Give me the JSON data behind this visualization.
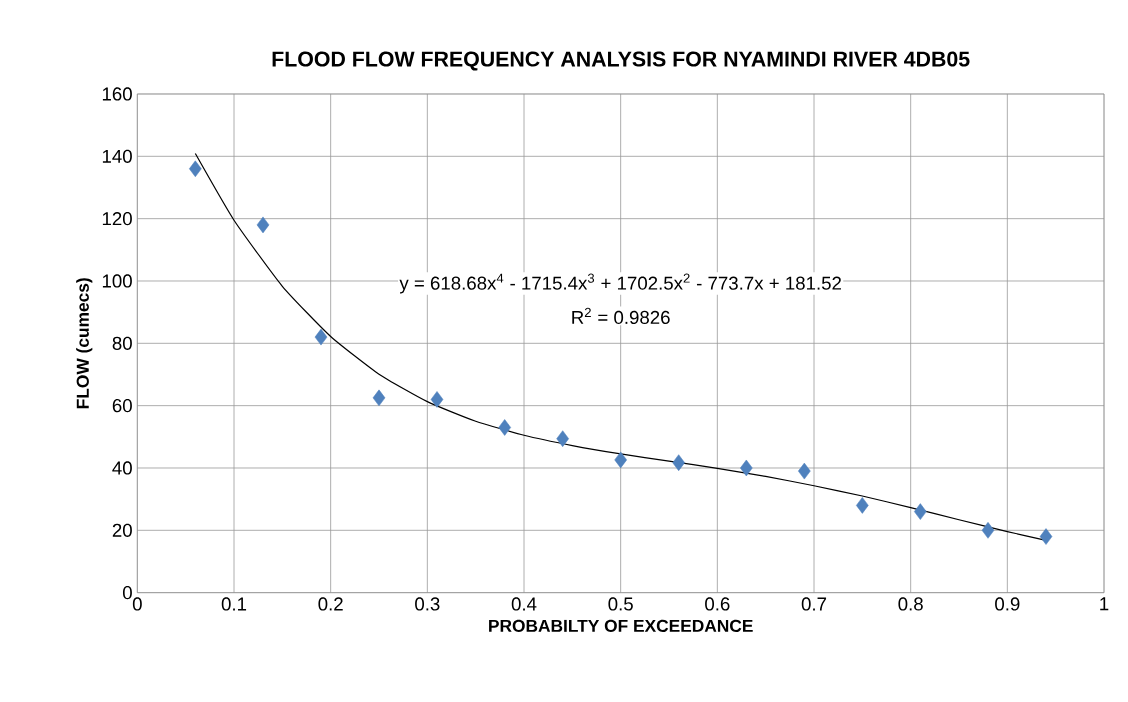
{
  "chart_data": {
    "type": "scatter",
    "title": "FLOOD FLOW FREQUENCY ANALYSIS FOR NYAMINDI RIVER 4DB05",
    "xlabel": "PROBABILTY OF EXCEEDANCE",
    "ylabel": "FLOW (cumecs)",
    "xlim": [
      0,
      1
    ],
    "xticks": [
      0,
      0.1,
      0.2,
      0.3,
      0.4,
      0.5,
      0.6,
      0.7,
      0.8,
      0.9,
      1
    ],
    "ylim": [
      0,
      160
    ],
    "yticks": [
      0,
      20,
      40,
      60,
      80,
      100,
      120,
      140,
      160
    ],
    "grid": true,
    "marker": "diamond",
    "series": [
      {
        "color": "#4f81bd",
        "x": [
          0.06,
          0.13,
          0.19,
          0.25,
          0.31,
          0.38,
          0.44,
          0.5,
          0.56,
          0.63,
          0.69,
          0.75,
          0.81,
          0.88,
          0.94
        ],
        "values": [
          136,
          118,
          82,
          62.5,
          62,
          53,
          49.4,
          42.6,
          41.7,
          40,
          39,
          28,
          26,
          20,
          18
        ]
      },
      {
        "type": "line",
        "color": "#000000",
        "marker": "none",
        "x": [
          0.06,
          0.1,
          0.15,
          0.2,
          0.25,
          0.3,
          0.35,
          0.4,
          0.45,
          0.5,
          0.55,
          0.6,
          0.65,
          0.7,
          0.75,
          0.8,
          0.85,
          0.9,
          0.94
        ],
        "values": [
          140.9,
          119.5,
          98.3,
          82.2,
          70.1,
          61.3,
          55,
          50.5,
          47.2,
          44.5,
          42.2,
          39.9,
          37.3,
          34.3,
          31,
          27.3,
          23.4,
          19.6,
          16.8
        ]
      }
    ],
    "annotations": [
      "y = 618.68x$^{4}$ - 1715.4x$^{3}$ + 1702.5x$^{2}$ - 773.7x + 181.52",
      "R$^{2}$ = 0.9826"
    ]
  }
}
